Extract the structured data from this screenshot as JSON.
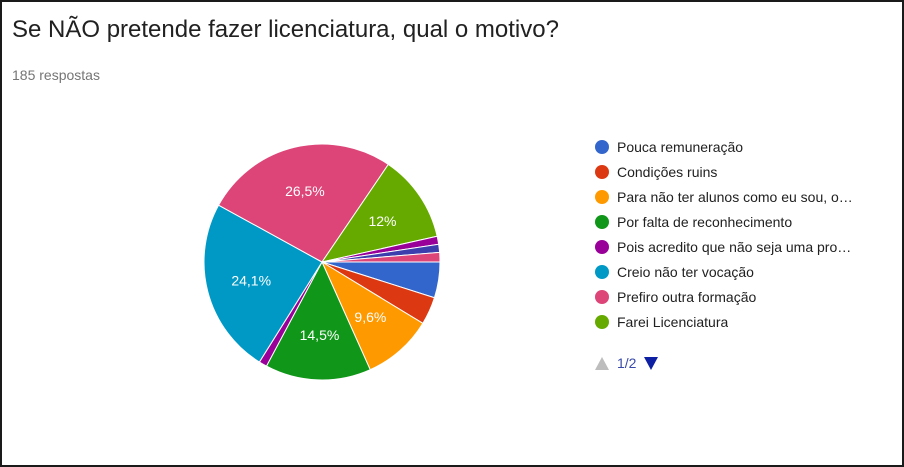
{
  "header": {
    "title": "Se NÃO pretende fazer licenciatura, qual o motivo?",
    "responses": "185 respostas"
  },
  "chart_data": {
    "type": "pie",
    "categories": [
      "Pouca remuneração",
      "Condições ruins",
      "Para não ter alunos como eu sou, o…",
      "Por falta de reconhecimento",
      "Pois acredito que não seja uma pro…",
      "Creio não ter vocação",
      "Prefiro outra formação",
      "Farei Licenciatura"
    ],
    "values": [
      4.9,
      3.8,
      9.6,
      14.5,
      1.1,
      24.1,
      26.5,
      12.0
    ],
    "slice_labels": [
      "",
      "",
      "9,6%",
      "14,5%",
      "",
      "24,1%",
      "26,5%",
      "12%"
    ],
    "other_slices": [
      {
        "value": 1.1,
        "color": "#990099"
      },
      {
        "value": 1.1,
        "color": "#3b3eac"
      },
      {
        "value": 1.3,
        "color": "#dd4477"
      }
    ],
    "colors": [
      "#3366cc",
      "#dc3912",
      "#ff9900",
      "#109618",
      "#990099",
      "#0099c6",
      "#dd4477",
      "#66aa00"
    ],
    "legend_position": "right"
  },
  "legend_pager": {
    "page": "1/2"
  }
}
